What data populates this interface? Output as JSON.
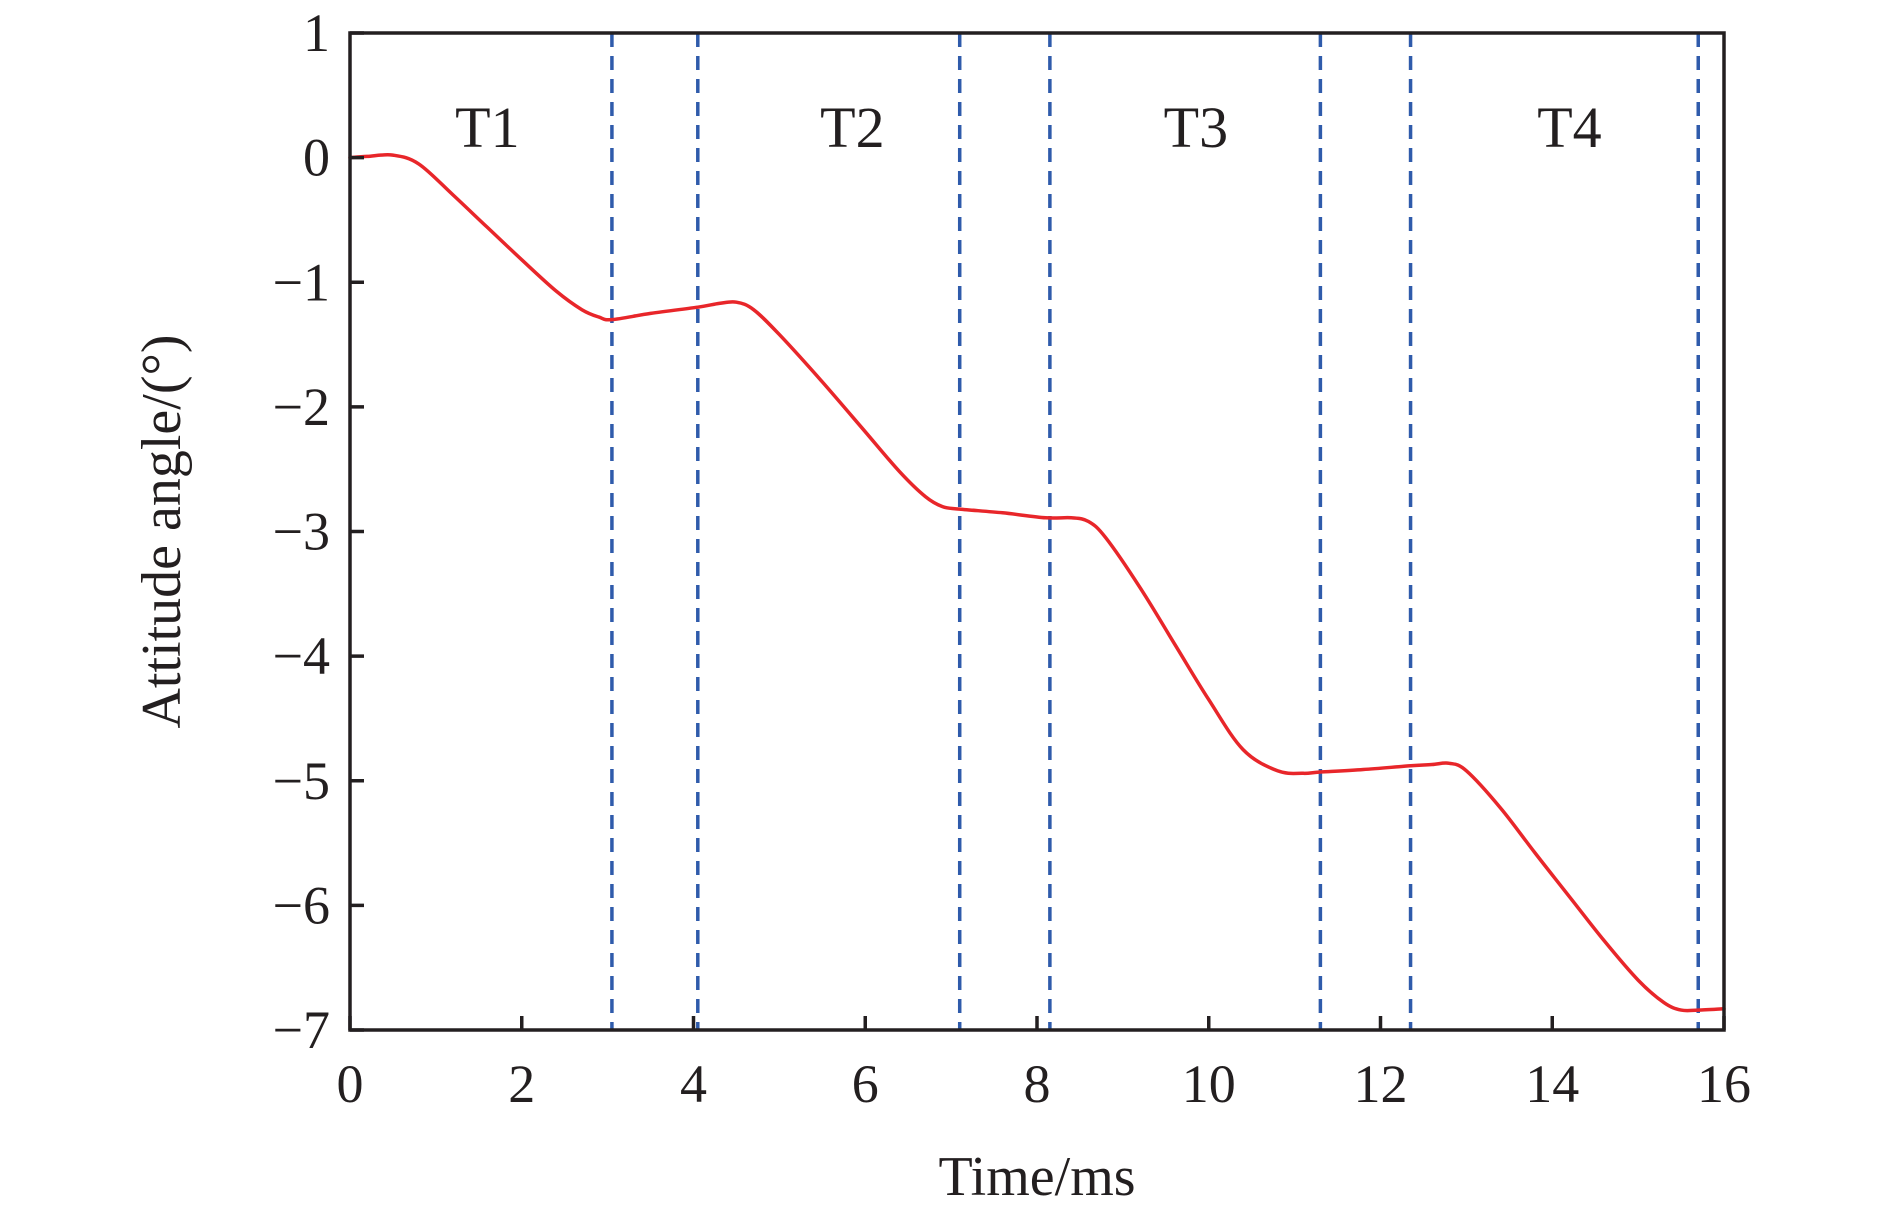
{
  "chart_data": {
    "type": "line",
    "title": "",
    "xlabel": "Time/ms",
    "ylabel": "Attitude angle/(°)",
    "xlim": [
      0,
      16
    ],
    "ylim": [
      -7,
      1
    ],
    "xticks": [
      0,
      2,
      4,
      6,
      8,
      10,
      12,
      14,
      16
    ],
    "xtick_labels": [
      "0",
      "2",
      "4",
      "6",
      "8",
      "10",
      "12",
      "14",
      "16"
    ],
    "yticks": [
      1,
      0,
      -1,
      -2,
      -3,
      -4,
      -5,
      -6,
      -7
    ],
    "ytick_labels": [
      "1",
      "0",
      "−1",
      "−2",
      "−3",
      "−4",
      "−5",
      "−6",
      "−7"
    ],
    "grid": false,
    "line_color": "#e8262a",
    "divider_color": "#2f5bab",
    "series": [
      {
        "x": [
          0,
          0.2,
          0.5,
          0.8,
          1.2,
          1.6,
          2.0,
          2.4,
          2.7,
          2.9,
          3.05,
          3.5,
          4.05,
          4.3,
          4.5,
          4.7,
          5.0,
          5.5,
          6.0,
          6.4,
          6.7,
          6.9,
          7.1,
          7.6,
          8.1,
          8.4,
          8.6,
          8.8,
          9.2,
          9.6,
          10.0,
          10.4,
          10.8,
          11.1,
          11.3,
          11.8,
          12.35,
          12.6,
          12.8,
          13.0,
          13.4,
          13.8,
          14.2,
          14.6,
          15.0,
          15.3,
          15.5,
          15.7,
          16.0
        ],
        "y": [
          0,
          0.01,
          0.02,
          -0.05,
          -0.3,
          -0.56,
          -0.82,
          -1.07,
          -1.22,
          -1.28,
          -1.3,
          -1.25,
          -1.2,
          -1.17,
          -1.16,
          -1.22,
          -1.42,
          -1.8,
          -2.2,
          -2.52,
          -2.72,
          -2.8,
          -2.82,
          -2.85,
          -2.89,
          -2.89,
          -2.92,
          -3.05,
          -3.45,
          -3.9,
          -4.35,
          -4.75,
          -4.92,
          -4.94,
          -4.93,
          -4.91,
          -4.88,
          -4.87,
          -4.86,
          -4.92,
          -5.22,
          -5.58,
          -5.93,
          -6.28,
          -6.6,
          -6.78,
          -6.84,
          -6.84,
          -6.83
        ]
      }
    ],
    "dividers": [
      3.05,
      4.05,
      7.1,
      8.15,
      11.3,
      12.35,
      15.7
    ],
    "regions": [
      {
        "label": "T1",
        "x": 1.6
      },
      {
        "label": "T2",
        "x": 5.85
      },
      {
        "label": "T3",
        "x": 9.85
      },
      {
        "label": "T4",
        "x": 14.2
      }
    ]
  }
}
